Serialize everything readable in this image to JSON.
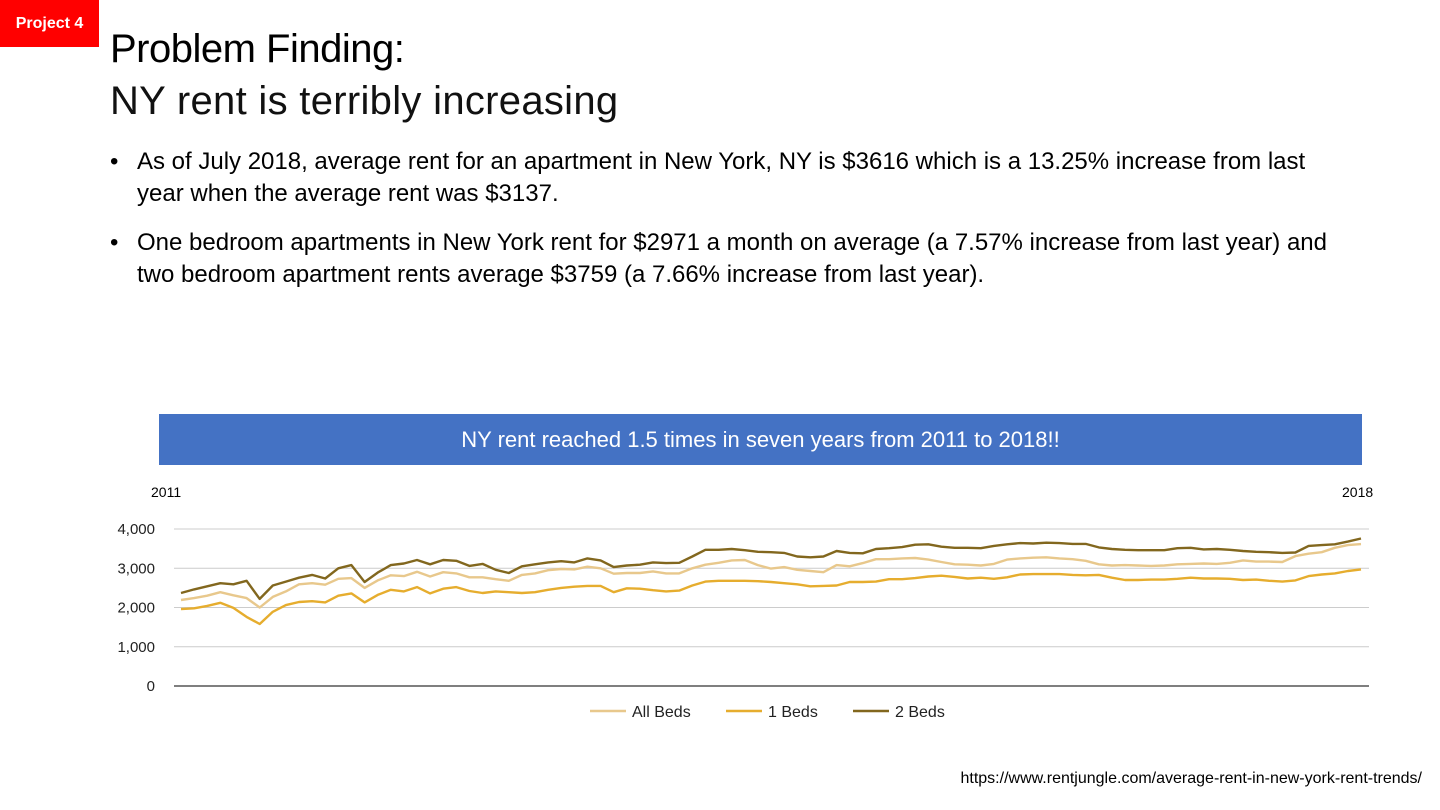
{
  "badge": "Project 4",
  "title": {
    "line1": "Problem Finding:",
    "line2": "NY rent is terribly increasing"
  },
  "bullets": [
    "As of July 2018, average rent for an apartment in New York, NY is $3616 which is a 13.25% increase from last year when the average rent was $3137.",
    "One bedroom apartments in New York rent for $2971 a month on average (a 7.57% increase from last year) and two bedroom apartment rents average $3759 (a 7.66% increase from last year)."
  ],
  "banner": "NY rent reached 1.5 times in seven years from 2011 to 2018!!",
  "year_start": "2011",
  "year_end": "2018",
  "source": "https://www.rentjungle.com/average-rent-in-new-york-rent-trends/",
  "chart_data": {
    "type": "line",
    "ylim": [
      0,
      4000
    ],
    "yticks": [
      0,
      1000,
      2000,
      3000,
      4000
    ],
    "ytick_labels": [
      "0",
      "1,000",
      "2,000",
      "3,000",
      "4,000"
    ],
    "grid": true,
    "legend_position": "bottom",
    "series": [
      {
        "name": "All Beds",
        "color": "#e8c88c",
        "values": [
          2190,
          2240,
          2300,
          2390,
          2310,
          2240,
          2000,
          2270,
          2410,
          2590,
          2620,
          2580,
          2730,
          2750,
          2500,
          2690,
          2820,
          2800,
          2910,
          2790,
          2900,
          2870,
          2770,
          2770,
          2720,
          2680,
          2830,
          2870,
          2950,
          2980,
          2970,
          3040,
          3000,
          2860,
          2880,
          2880,
          2920,
          2870,
          2870,
          3000,
          3090,
          3140,
          3200,
          3210,
          3080,
          2990,
          3030,
          2960,
          2930,
          2900,
          3080,
          3050,
          3130,
          3230,
          3230,
          3250,
          3260,
          3220,
          3160,
          3100,
          3090,
          3070,
          3110,
          3220,
          3250,
          3270,
          3280,
          3250,
          3230,
          3190,
          3100,
          3070,
          3080,
          3070,
          3060,
          3070,
          3100,
          3110,
          3120,
          3110,
          3140,
          3200,
          3170,
          3170,
          3160,
          3310,
          3370,
          3410,
          3520,
          3590,
          3616
        ]
      },
      {
        "name": "1 Beds",
        "color": "#e6ad2e",
        "values": [
          1960,
          1980,
          2040,
          2120,
          1990,
          1760,
          1580,
          1890,
          2060,
          2140,
          2160,
          2130,
          2300,
          2360,
          2130,
          2320,
          2450,
          2410,
          2520,
          2360,
          2480,
          2520,
          2420,
          2370,
          2410,
          2390,
          2370,
          2390,
          2450,
          2500,
          2530,
          2550,
          2550,
          2390,
          2490,
          2480,
          2440,
          2410,
          2430,
          2560,
          2660,
          2680,
          2680,
          2680,
          2670,
          2650,
          2620,
          2590,
          2540,
          2550,
          2560,
          2650,
          2650,
          2660,
          2720,
          2720,
          2750,
          2790,
          2810,
          2780,
          2740,
          2760,
          2730,
          2770,
          2840,
          2850,
          2850,
          2850,
          2830,
          2820,
          2830,
          2760,
          2700,
          2700,
          2710,
          2710,
          2730,
          2760,
          2740,
          2740,
          2730,
          2700,
          2710,
          2680,
          2660,
          2690,
          2800,
          2840,
          2870,
          2930,
          2971
        ]
      },
      {
        "name": "2 Beds",
        "color": "#82671e",
        "values": [
          2370,
          2460,
          2540,
          2620,
          2590,
          2680,
          2220,
          2560,
          2660,
          2760,
          2830,
          2740,
          3000,
          3080,
          2650,
          2890,
          3080,
          3120,
          3210,
          3100,
          3210,
          3190,
          3060,
          3110,
          2960,
          2880,
          3050,
          3100,
          3150,
          3180,
          3150,
          3250,
          3200,
          3030,
          3070,
          3090,
          3150,
          3130,
          3140,
          3300,
          3470,
          3470,
          3490,
          3460,
          3420,
          3410,
          3390,
          3300,
          3280,
          3300,
          3440,
          3390,
          3380,
          3490,
          3510,
          3540,
          3600,
          3610,
          3550,
          3520,
          3520,
          3510,
          3570,
          3610,
          3640,
          3630,
          3650,
          3640,
          3620,
          3620,
          3530,
          3490,
          3470,
          3460,
          3460,
          3460,
          3510,
          3520,
          3480,
          3490,
          3470,
          3440,
          3420,
          3410,
          3390,
          3400,
          3570,
          3590,
          3610,
          3680,
          3759
        ]
      }
    ]
  }
}
